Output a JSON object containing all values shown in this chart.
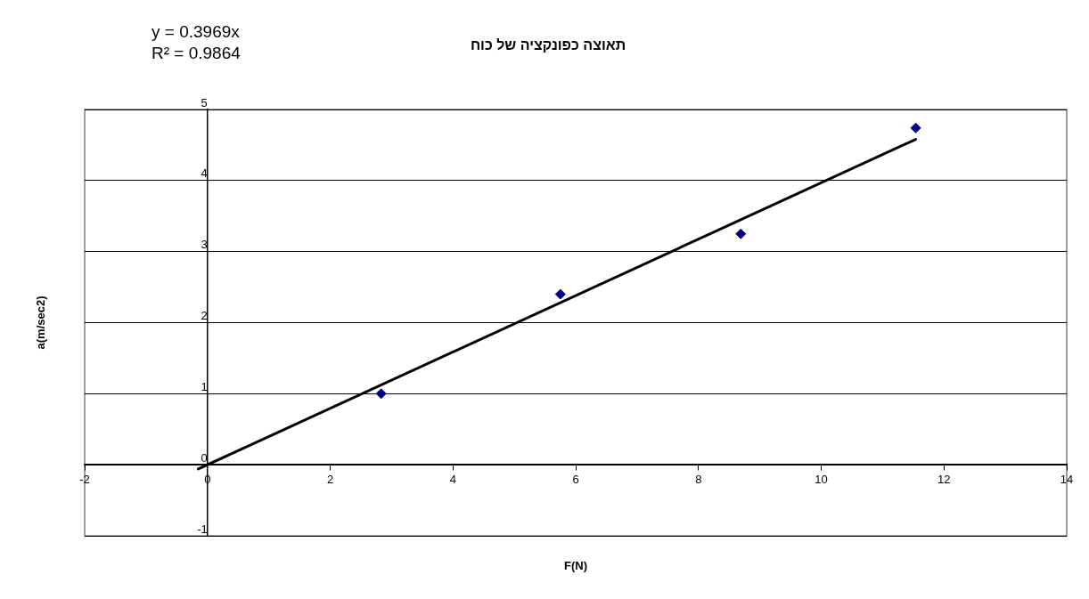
{
  "chart_data": {
    "type": "scatter",
    "title": "תאוצה כפונקציה של כוח",
    "xlabel": "F(N)",
    "ylabel": "a(m/sec2)",
    "annotations": [
      "y = 0.3969x",
      "R² = 0.9864"
    ],
    "series": [
      {
        "color": "#000080",
        "x": [
          2.83,
          5.75,
          8.69,
          11.54
        ],
        "values": [
          1.0,
          2.4,
          3.25,
          4.74
        ],
        "marker": "diamond"
      },
      {
        "type": "line",
        "color": "#000000",
        "x": [
          -0.15,
          11.54
        ],
        "values": [
          -0.06,
          4.58
        ],
        "marker": "none"
      }
    ],
    "xlim": [
      -2,
      14
    ],
    "xticks": [
      -2,
      0,
      2,
      4,
      6,
      8,
      10,
      12,
      14
    ],
    "ylim": [
      -1,
      5
    ],
    "yticks": [
      -1,
      0,
      1,
      2,
      3,
      4,
      5
    ],
    "grid": "y",
    "legend": false
  }
}
